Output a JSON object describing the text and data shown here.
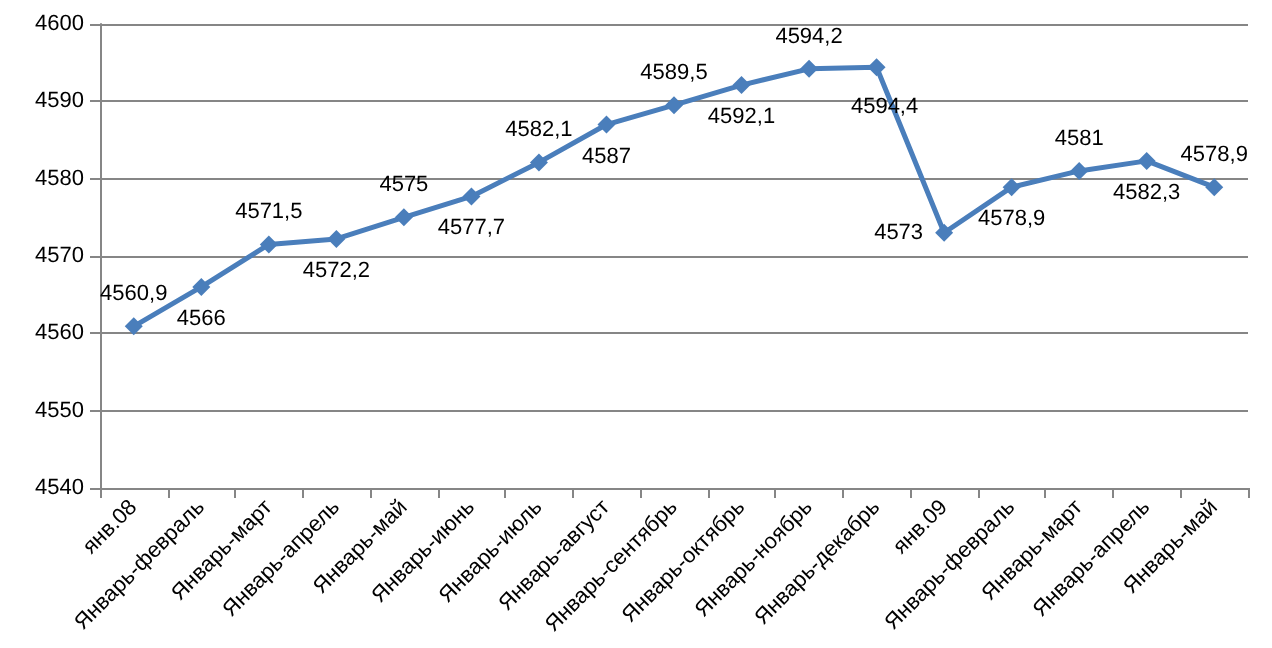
{
  "chart_data": {
    "type": "line",
    "categories": [
      "янв.08",
      "Январь-февраль",
      "Январь-март",
      "Январь-апрель",
      "Январь-май",
      "Январь-июнь",
      "Январь-июль",
      "Январь-август",
      "Январь-сентябрь",
      "Январь-октябрь",
      "Январь-ноябрь",
      "Январь-декабрь",
      "янв.09",
      "Январь-февраль",
      "Январь-март",
      "Январь-апрель",
      "Январь-май"
    ],
    "series": [
      {
        "color": "#4a7ebb",
        "values": [
          4560.9,
          4566,
          4571.5,
          4572.2,
          4575,
          4577.7,
          4582.1,
          4587,
          4589.5,
          4592.1,
          4594.2,
          4594.4,
          4573,
          4578.9,
          4581,
          4582.3,
          4578.9
        ],
        "value_labels": [
          "4560,9",
          "4566",
          "4571,5",
          "4572,2",
          "4575",
          "4577,7",
          "4582,1",
          "4587",
          "4589,5",
          "4592,1",
          "4594,2",
          "4594,4",
          "4573",
          "4578,9",
          "4581",
          "4582,3",
          "4578,9"
        ]
      }
    ],
    "ylim": [
      4540,
      4600
    ],
    "yticks": [
      4540,
      4550,
      4560,
      4570,
      4580,
      4590,
      4600
    ],
    "grid": "y",
    "marker": "diamond",
    "line_style": "solid"
  }
}
